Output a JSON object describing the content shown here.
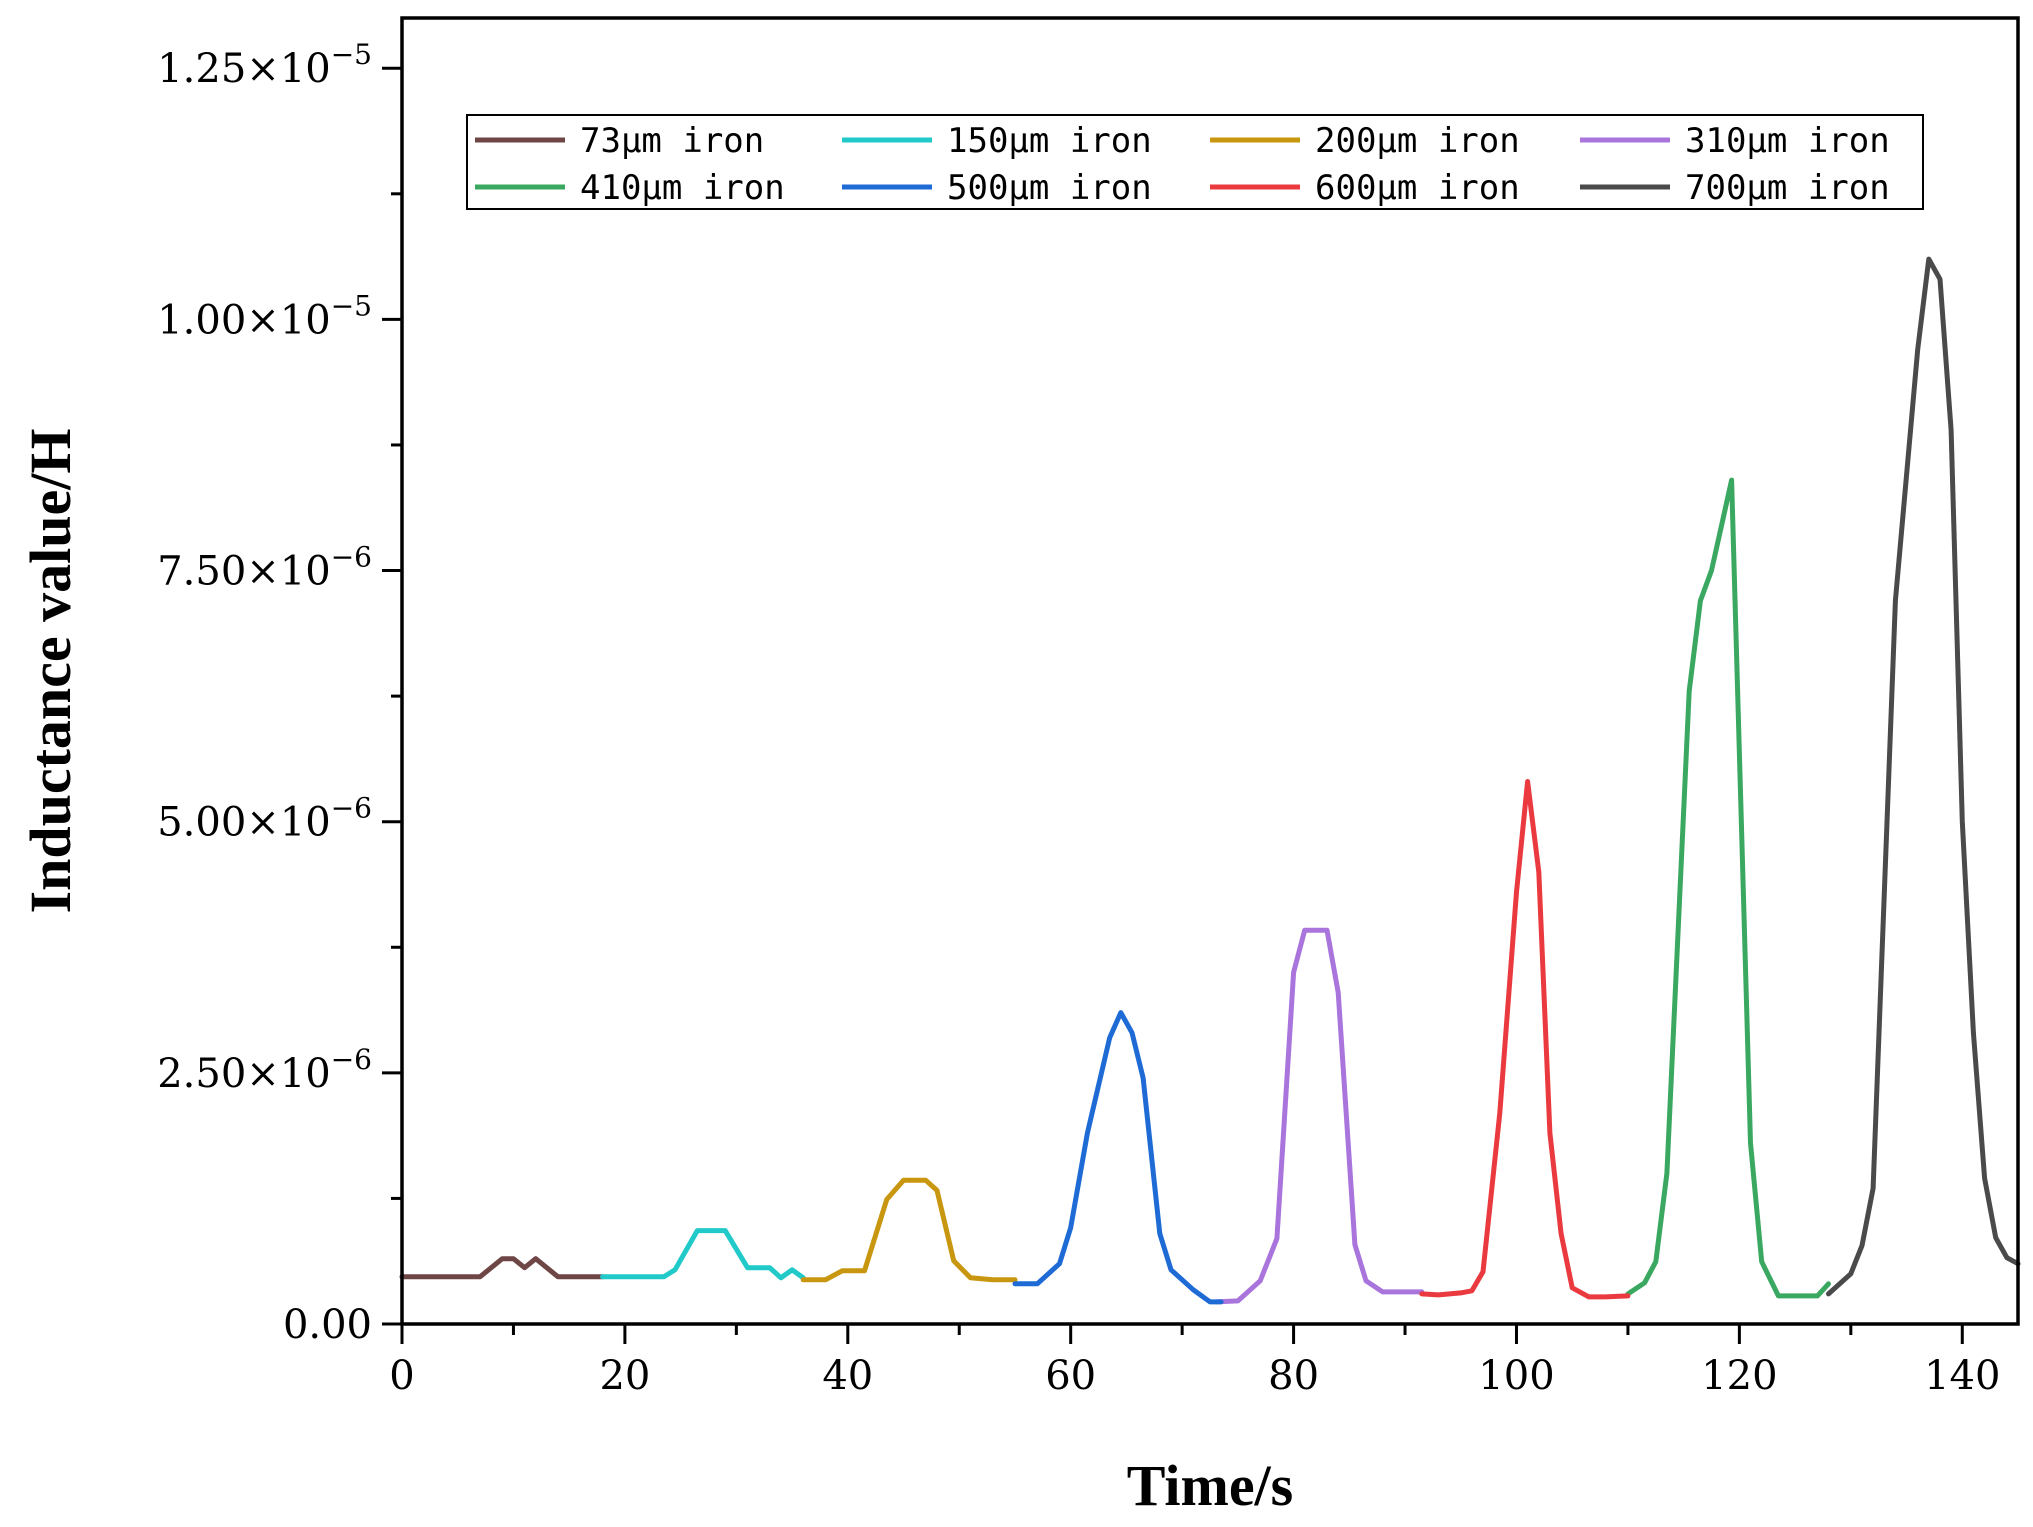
{
  "chart_data": {
    "type": "line",
    "title": "",
    "xlabel": "Time/s",
    "ylabel": "Inductance value/H",
    "xlim": [
      0,
      145
    ],
    "ylim": [
      0,
      1.3e-05
    ],
    "grid": false,
    "legend_position": "top",
    "x_ticks": [
      0,
      20,
      40,
      60,
      80,
      100,
      120,
      140
    ],
    "x_tick_labels": [
      "0",
      "20",
      "40",
      "60",
      "80",
      "100",
      "120",
      "140"
    ],
    "y_ticks": [
      0,
      2.5e-06,
      5e-06,
      7.5e-06,
      1e-05,
      1.25e-05
    ],
    "y_tick_labels": [
      {
        "mantissa": "0.00",
        "exponent": ""
      },
      {
        "mantissa": "2.50×10",
        "exponent": "−6"
      },
      {
        "mantissa": "5.00×10",
        "exponent": "−6"
      },
      {
        "mantissa": "7.50×10",
        "exponent": "−6"
      },
      {
        "mantissa": "1.00×10",
        "exponent": "−5"
      },
      {
        "mantissa": "1.25×10",
        "exponent": "−5"
      }
    ],
    "series": [
      {
        "name": "73μm iron",
        "color": "#6e4646",
        "x": [
          0,
          3,
          7,
          9,
          10,
          11,
          12,
          14,
          16,
          18
        ],
        "y": [
          4.7e-07,
          4.7e-07,
          4.7e-07,
          6.5e-07,
          6.5e-07,
          5.6e-07,
          6.5e-07,
          4.7e-07,
          4.7e-07,
          4.7e-07
        ]
      },
      {
        "name": "150μm iron",
        "color": "#22c9c9",
        "x": [
          18,
          21,
          23.5,
          24.5,
          26.5,
          29,
          31,
          33,
          34,
          35,
          36
        ],
        "y": [
          4.7e-07,
          4.7e-07,
          4.7e-07,
          5.4e-07,
          9.3e-07,
          9.3e-07,
          5.6e-07,
          5.6e-07,
          4.6e-07,
          5.4e-07,
          4.6e-07
        ]
      },
      {
        "name": "200μm iron",
        "color": "#c8960f",
        "x": [
          36,
          38,
          39.5,
          41.5,
          43.5,
          45,
          47,
          48,
          49.5,
          51,
          53,
          55
        ],
        "y": [
          4.4e-07,
          4.4e-07,
          5.3e-07,
          5.3e-07,
          1.24e-06,
          1.43e-06,
          1.43e-06,
          1.33e-06,
          6.3e-07,
          4.6e-07,
          4.4e-07,
          4.4e-07
        ]
      },
      {
        "name": "310μm iron",
        "color": "#a974dc",
        "x": [
          73,
          75,
          77,
          78.5,
          80,
          81,
          83,
          84,
          85.5,
          86.5,
          88,
          90,
          91.5
        ],
        "y": [
          2.2e-07,
          2.3e-07,
          4.3e-07,
          8.5e-07,
          3.5e-06,
          3.92e-06,
          3.92e-06,
          3.3e-06,
          7.9e-07,
          4.3e-07,
          3.2e-07,
          3.2e-07,
          3.2e-07
        ]
      },
      {
        "name": "410μm iron",
        "color": "#3aa860",
        "x": [
          110,
          111.5,
          112.5,
          113.5,
          115.5,
          116.5,
          117.5,
          118.5,
          119.3,
          121,
          122,
          123.5,
          125,
          127,
          128
        ],
        "y": [
          3e-07,
          4.1e-07,
          6.2e-07,
          1.5e-06,
          6.3e-06,
          7.2e-06,
          7.5e-06,
          8e-06,
          8.4e-06,
          1.8e-06,
          6.2e-07,
          2.8e-07,
          2.8e-07,
          2.8e-07,
          4e-07
        ]
      },
      {
        "name": "500μm iron",
        "color": "#1f6bd6",
        "x": [
          55,
          57,
          59,
          60,
          61.5,
          63.5,
          64.5,
          65.5,
          66.5,
          68,
          69,
          71,
          72.5,
          73.5
        ],
        "y": [
          4e-07,
          4e-07,
          6e-07,
          9.6e-07,
          1.9e-06,
          2.85e-06,
          3.1e-06,
          2.9e-06,
          2.45e-06,
          9e-07,
          5.4e-07,
          3.4e-07,
          2.2e-07,
          2.2e-07
        ]
      },
      {
        "name": "600μm iron",
        "color": "#ea3a3f",
        "x": [
          91.5,
          93,
          95,
          96,
          97,
          98.5,
          100,
          101,
          102,
          103,
          104,
          105,
          106.5,
          108,
          110
        ],
        "y": [
          3e-07,
          2.9e-07,
          3.1e-07,
          3.3e-07,
          5.2e-07,
          2.1e-06,
          4.3e-06,
          5.4e-06,
          4.5e-06,
          1.9e-06,
          9e-07,
          3.6e-07,
          2.7e-07,
          2.7e-07,
          2.8e-07
        ]
      },
      {
        "name": "700μm iron",
        "color": "#4a4a4a",
        "x": [
          128,
          130,
          131,
          132,
          134,
          136,
          137,
          138,
          139,
          140,
          141,
          142,
          143,
          144,
          145
        ],
        "y": [
          3e-07,
          5e-07,
          7.8e-07,
          1.35e-06,
          7.2e-06,
          9.7e-06,
          1.06e-05,
          1.04e-05,
          8.9e-06,
          5e-06,
          2.9e-06,
          1.45e-06,
          8.6e-07,
          6.6e-07,
          6e-07
        ]
      }
    ],
    "legend_order": [
      0,
      1,
      2,
      3,
      4,
      5,
      6,
      7
    ]
  }
}
